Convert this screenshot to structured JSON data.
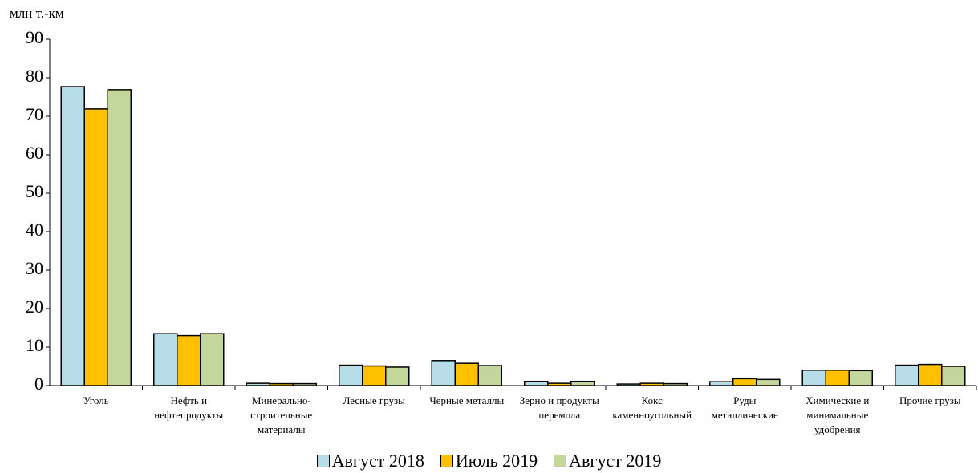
{
  "chart_data": {
    "type": "bar",
    "y_label": "млн т.-км",
    "categories": [
      "Уголь",
      "Нефть и нефтепродукты",
      "Минерально-строительные материалы",
      "Лесные грузы",
      "Чёрные металлы",
      "Зерно и продукты перемола",
      "Кокс каменноугольный",
      "Руды металлические",
      "Химические и минимальные удобрения",
      "Прочие грузы"
    ],
    "series": [
      {
        "name": "Август 2018",
        "color": "#b7dde8",
        "values": [
          77.7,
          13.5,
          0.6,
          5.3,
          6.5,
          1.1,
          0.4,
          1.0,
          4.0,
          5.3
        ]
      },
      {
        "name": "Июль 2019",
        "color": "#ffc000",
        "values": [
          71.9,
          13.0,
          0.5,
          5.1,
          5.8,
          0.6,
          0.6,
          1.8,
          4.0,
          5.5
        ]
      },
      {
        "name": "Август 2019",
        "color": "#c3d69b",
        "values": [
          76.9,
          13.5,
          0.5,
          4.8,
          5.2,
          1.1,
          0.5,
          1.6,
          3.9,
          5.0
        ]
      }
    ],
    "ylim": [
      0,
      90
    ],
    "yticks": [
      0,
      10,
      20,
      30,
      40,
      50,
      60,
      70,
      80,
      90
    ],
    "grid": false,
    "legend": "bottom"
  }
}
